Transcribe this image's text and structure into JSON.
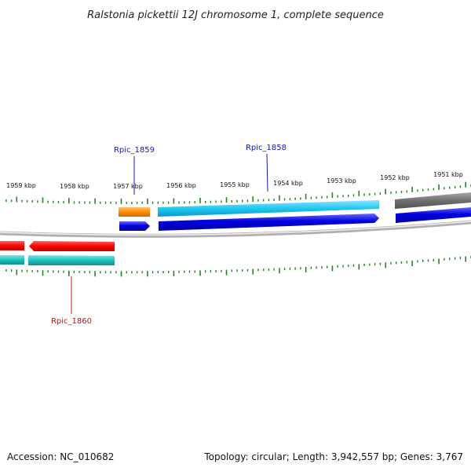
{
  "title": "Ralstonia pickettii 12J chromosome 1, complete sequence",
  "kbp_labels": [
    "1959 kbp",
    "1958 kbp",
    "1957 kbp",
    "1956 kbp",
    "1955 kbp",
    "1954 kbp",
    "1953 kbp",
    "1952 kbp",
    "1951 kbp"
  ],
  "genes": [
    {
      "name": "Rpic_1859",
      "color": "#1515c8"
    },
    {
      "name": "Rpic_1858",
      "color": "#1515c8"
    },
    {
      "name": "Rpic_1860",
      "color": "#d01010"
    }
  ],
  "footer": {
    "accession": "Accession: NC_010682",
    "topology": "Topology: circular; Length: 3,942,557 bp; Genes: 3,767"
  },
  "colors": {
    "forward_cds": "#0000e0",
    "forward_gene": "#1ec8f0",
    "reverse_cds": "#ff0000",
    "reverse_gene": "#20c0c0",
    "rna": "#ff8c00",
    "other": "#707070",
    "tick": "#1a8a1a",
    "backbone": "#888888"
  }
}
